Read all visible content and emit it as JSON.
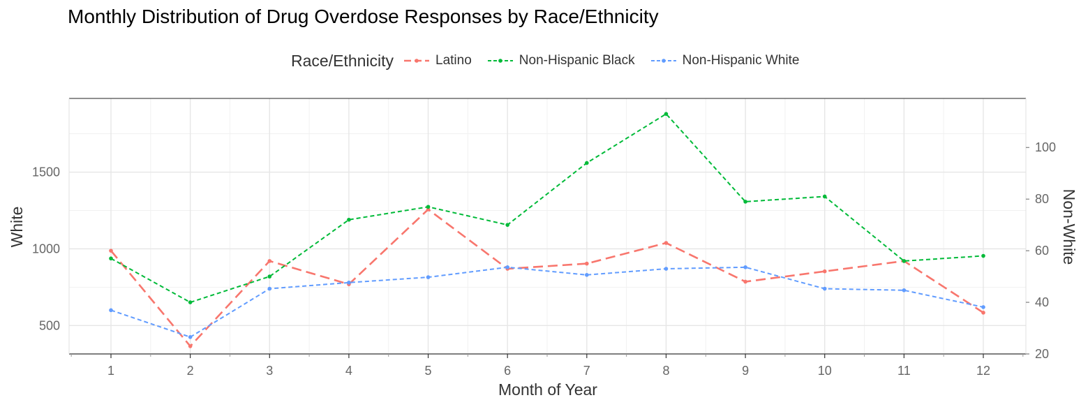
{
  "chart_data": {
    "type": "line",
    "title": "Monthly Distribution of Drug Overdose Responses by Race/Ethnicity",
    "xlabel": "Month of Year",
    "ylabel_left": "White",
    "ylabel_right": "Non-White",
    "x": [
      1,
      2,
      3,
      4,
      5,
      6,
      7,
      8,
      9,
      10,
      11,
      12
    ],
    "x_tick_labels": [
      "1",
      "2",
      "3",
      "4",
      "5",
      "6",
      "7",
      "8",
      "9",
      "10",
      "11",
      "12"
    ],
    "left_axis": {
      "ylim": [
        315,
        1980
      ],
      "ticks": [
        500,
        1000,
        1500
      ],
      "tick_labels": [
        "500",
        "1000",
        "1500"
      ]
    },
    "right_axis": {
      "ylim": [
        20,
        119
      ],
      "ticks": [
        20,
        40,
        60,
        80,
        100
      ],
      "tick_labels": [
        "20",
        "40",
        "60",
        "80",
        "100"
      ]
    },
    "legend": {
      "title": "Race/Ethnicity",
      "position": "top"
    },
    "grid": true,
    "series": [
      {
        "name": "Latino",
        "axis": "right",
        "color": "#F8766D",
        "dash": "long-dash",
        "values": [
          60,
          23,
          56,
          47,
          76,
          53,
          55,
          63,
          48,
          52,
          56,
          36
        ]
      },
      {
        "name": "Non-Hispanic Black",
        "axis": "right",
        "color": "#00BA38",
        "dash": "short-dash",
        "values": [
          57,
          40,
          50,
          72,
          77,
          70,
          94,
          113,
          79,
          81,
          56,
          58
        ]
      },
      {
        "name": "Non-Hispanic White",
        "axis": "left",
        "color": "#619CFF",
        "dash": "short-dash",
        "values": [
          600,
          425,
          740,
          780,
          815,
          880,
          830,
          870,
          880,
          740,
          730,
          620
        ]
      }
    ]
  }
}
